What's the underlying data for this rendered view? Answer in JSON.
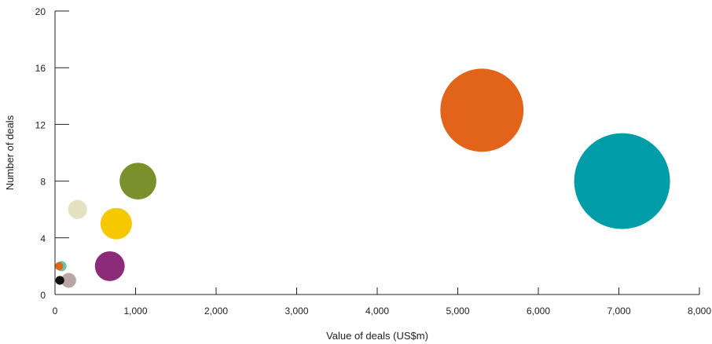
{
  "chart_data": {
    "type": "scatter",
    "title": "",
    "xlabel": "Value of deals (US$m)",
    "ylabel": "Number of deals",
    "xlim": [
      0,
      8000
    ],
    "ylim": [
      0,
      20
    ],
    "x_ticks": [
      0,
      1000,
      2000,
      3000,
      4000,
      5000,
      6000,
      7000,
      8000
    ],
    "x_tick_labels": [
      "0",
      "1,000",
      "2,000",
      "3,000",
      "4,000",
      "5,000",
      "6,000",
      "7,000",
      "8,000"
    ],
    "y_ticks": [
      0,
      4,
      8,
      12,
      16,
      20
    ],
    "y_tick_labels": [
      "0",
      "4",
      "8",
      "12",
      "16",
      "20"
    ],
    "grid": false,
    "legend": "none",
    "bubble_size_encodes": "Value of deals (US$m)",
    "points": [
      {
        "x": 5300,
        "y": 13,
        "color": "#e2641b"
      },
      {
        "x": 7040,
        "y": 8,
        "color": "#009da8"
      },
      {
        "x": 1030,
        "y": 8,
        "color": "#7a902d"
      },
      {
        "x": 280,
        "y": 6,
        "color": "#e4e2c0"
      },
      {
        "x": 760,
        "y": 5,
        "color": "#f6c800"
      },
      {
        "x": 680,
        "y": 2,
        "color": "#8c2b77"
      },
      {
        "x": 80,
        "y": 2,
        "color": "#6cbfa8"
      },
      {
        "x": 50,
        "y": 2,
        "color": "#e2641b"
      },
      {
        "x": 170,
        "y": 1,
        "color": "#bba8a6"
      },
      {
        "x": 60,
        "y": 1,
        "color": "#111111"
      }
    ]
  }
}
